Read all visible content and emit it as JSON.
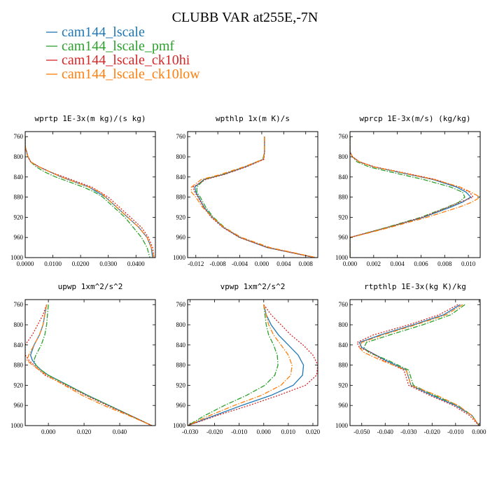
{
  "title": "CLUBB VAR at255E,-7N",
  "legend": [
    {
      "name": "cam144_lscale",
      "color": "#1f77b4",
      "dash": "solid"
    },
    {
      "name": "cam144_lscale_pmf",
      "color": "#2ca02c",
      "dash": "dashdot"
    },
    {
      "name": "cam144_lscale_ck10hi",
      "color": "#d62728",
      "dash": "dotted"
    },
    {
      "name": "cam144_lscale_ck10low",
      "color": "#ff7f0e",
      "dash": "dashdot"
    }
  ],
  "chart_data": [
    {
      "type": "line",
      "title": "wprtp  1E-3x(m kg)/(s kg)",
      "xlim": [
        0.0,
        0.047
      ],
      "ylim": [
        1000,
        750
      ],
      "xticks": [
        0.0,
        0.01,
        0.02,
        0.03,
        0.04
      ],
      "xtick_labels": [
        "0.0000",
        "0.0100",
        "0.0200",
        "0.0300",
        "0.0400"
      ],
      "yticks": [
        760,
        800,
        840,
        880,
        920,
        960,
        1000
      ],
      "y": [
        760,
        780,
        800,
        810,
        820,
        830,
        840,
        850,
        860,
        870,
        880,
        900,
        920,
        940,
        960,
        980,
        1000
      ],
      "series": [
        {
          "x": [
            0.0,
            0.0,
            0.001,
            0.002,
            0.005,
            0.009,
            0.013,
            0.018,
            0.023,
            0.026,
            0.029,
            0.033,
            0.037,
            0.041,
            0.044,
            0.0455,
            0.046
          ]
        },
        {
          "x": [
            0.0,
            0.0,
            0.001,
            0.002,
            0.004,
            0.007,
            0.011,
            0.016,
            0.021,
            0.025,
            0.028,
            0.032,
            0.036,
            0.039,
            0.042,
            0.044,
            0.045
          ]
        },
        {
          "x": [
            0.0,
            0.0,
            0.001,
            0.002,
            0.005,
            0.009,
            0.014,
            0.019,
            0.024,
            0.027,
            0.03,
            0.034,
            0.038,
            0.042,
            0.0445,
            0.046,
            0.0465
          ]
        },
        {
          "x": [
            0.0,
            0.0,
            0.001,
            0.002,
            0.005,
            0.009,
            0.013,
            0.018,
            0.023,
            0.027,
            0.029,
            0.033,
            0.037,
            0.041,
            0.044,
            0.0455,
            0.0465
          ]
        }
      ]
    },
    {
      "type": "line",
      "title": "wpthlp  1x(m K)/s",
      "xlim": [
        -0.0135,
        0.0102
      ],
      "ylim": [
        1000,
        750
      ],
      "xticks": [
        -0.012,
        -0.008,
        -0.004,
        0.0,
        0.004,
        0.008
      ],
      "xtick_labels": [
        "-0.012",
        "-0.008",
        "-0.004",
        "0.000",
        "0.004",
        "0.008"
      ],
      "yticks": [
        760,
        800,
        840,
        880,
        920,
        960,
        1000
      ],
      "y": [
        760,
        790,
        805,
        820,
        835,
        845,
        860,
        870,
        880,
        900,
        920,
        940,
        960,
        980,
        1000
      ],
      "series": [
        {
          "x": [
            0.0005,
            0.0005,
            0.0003,
            -0.003,
            -0.007,
            -0.0105,
            -0.0122,
            -0.012,
            -0.0115,
            -0.0105,
            -0.009,
            -0.007,
            -0.004,
            0.001,
            0.0097
          ]
        },
        {
          "x": [
            0.0005,
            0.0005,
            0.0002,
            -0.0032,
            -0.0072,
            -0.0105,
            -0.0118,
            -0.0118,
            -0.0112,
            -0.0102,
            -0.0088,
            -0.0068,
            -0.0038,
            0.0012,
            0.0098
          ]
        },
        {
          "x": [
            0.0005,
            0.0005,
            0.0004,
            -0.0028,
            -0.0068,
            -0.0102,
            -0.0125,
            -0.0122,
            -0.0116,
            -0.0106,
            -0.0092,
            -0.0071,
            -0.0041,
            0.001,
            0.0097
          ]
        },
        {
          "x": [
            0.0005,
            0.0005,
            0.0003,
            -0.0033,
            -0.0075,
            -0.011,
            -0.0128,
            -0.0128,
            -0.012,
            -0.0108,
            -0.009,
            -0.0069,
            -0.0037,
            0.0015,
            0.0099
          ]
        }
      ]
    },
    {
      "type": "line",
      "title": "wprcp  1E-3x(m/s) (kg/kg)",
      "xlim": [
        0.0,
        0.011
      ],
      "ylim": [
        1000,
        750
      ],
      "xticks": [
        0.0,
        0.002,
        0.004,
        0.006,
        0.008,
        0.01
      ],
      "xtick_labels": [
        "0.000",
        "0.002",
        "0.004",
        "0.006",
        "0.008",
        "0.010"
      ],
      "yticks": [
        760,
        800,
        840,
        880,
        920,
        960,
        1000
      ],
      "y": [
        760,
        790,
        800,
        810,
        820,
        830,
        845,
        860,
        870,
        880,
        890,
        900,
        920,
        940,
        955,
        960,
        1000
      ],
      "series": [
        {
          "x": [
            0.0,
            0.0,
            0.0002,
            0.0008,
            0.002,
            0.004,
            0.007,
            0.009,
            0.0098,
            0.0102,
            0.0095,
            0.0085,
            0.0062,
            0.0032,
            0.0008,
            0.0,
            0.0
          ]
        },
        {
          "x": [
            0.0,
            0.0,
            0.0002,
            0.0006,
            0.0016,
            0.0034,
            0.0062,
            0.0085,
            0.0095,
            0.0097,
            0.0092,
            0.0082,
            0.006,
            0.0031,
            0.0008,
            0.0,
            0.0
          ]
        },
        {
          "x": [
            0.0,
            0.0,
            0.0002,
            0.0008,
            0.0021,
            0.0042,
            0.0072,
            0.0092,
            0.0101,
            0.0104,
            0.0093,
            0.0083,
            0.0061,
            0.0032,
            0.0008,
            0.0,
            0.0
          ]
        },
        {
          "x": [
            0.0,
            0.0,
            0.0002,
            0.0008,
            0.002,
            0.0041,
            0.0071,
            0.0093,
            0.0102,
            0.011,
            0.0103,
            0.0092,
            0.0065,
            0.0034,
            0.0009,
            0.0,
            0.0
          ]
        }
      ]
    },
    {
      "type": "line",
      "title": "upwp  1xm^2/s^2",
      "xlim": [
        -0.013,
        0.06
      ],
      "ylim": [
        1000,
        750
      ],
      "xticks": [
        0.0,
        0.02,
        0.04
      ],
      "xtick_labels": [
        "0.000",
        "0.020",
        "0.040"
      ],
      "yticks": [
        760,
        800,
        840,
        880,
        920,
        960,
        1000
      ],
      "y": [
        760,
        780,
        800,
        820,
        840,
        860,
        870,
        880,
        890,
        900,
        920,
        940,
        960,
        980,
        1000
      ],
      "series": [
        {
          "x": [
            -0.001,
            -0.002,
            -0.003,
            -0.005,
            -0.008,
            -0.01,
            -0.009,
            -0.007,
            -0.004,
            0.0,
            0.011,
            0.022,
            0.034,
            0.046,
            0.058
          ]
        },
        {
          "x": [
            0.0,
            -0.0005,
            -0.001,
            -0.002,
            -0.004,
            -0.007,
            -0.008,
            -0.007,
            -0.004,
            0.0,
            0.011,
            0.022,
            0.034,
            0.046,
            0.058
          ]
        },
        {
          "x": [
            -0.001,
            -0.003,
            -0.006,
            -0.009,
            -0.013,
            -0.013,
            -0.011,
            -0.008,
            -0.005,
            -0.002,
            0.01,
            0.021,
            0.033,
            0.046,
            0.058
          ]
        },
        {
          "x": [
            -0.001,
            -0.002,
            -0.003,
            -0.005,
            -0.008,
            -0.011,
            -0.012,
            -0.009,
            -0.005,
            -0.001,
            0.009,
            0.019,
            0.031,
            0.045,
            0.058
          ]
        }
      ]
    },
    {
      "type": "line",
      "title": "vpwp  1xm^2/s^2",
      "xlim": [
        -0.031,
        0.022
      ],
      "ylim": [
        1000,
        750
      ],
      "xticks": [
        -0.03,
        -0.02,
        -0.01,
        0.0,
        0.01,
        0.02
      ],
      "xtick_labels": [
        "-0.030",
        "-0.020",
        "-0.010",
        "0.000",
        "0.010",
        "0.020"
      ],
      "yticks": [
        760,
        800,
        840,
        880,
        920,
        960,
        1000
      ],
      "y": [
        760,
        780,
        800,
        820,
        840,
        860,
        880,
        900,
        920,
        940,
        960,
        980,
        1000
      ],
      "series": [
        {
          "x": [
            0.0,
            0.001,
            0.003,
            0.006,
            0.01,
            0.014,
            0.0162,
            0.0158,
            0.012,
            0.003,
            -0.009,
            -0.02,
            -0.031
          ]
        },
        {
          "x": [
            0.0,
            0.0005,
            0.001,
            0.002,
            0.004,
            0.0055,
            0.0058,
            0.0045,
            0.0005,
            -0.007,
            -0.016,
            -0.024,
            -0.031
          ]
        },
        {
          "x": [
            0.0,
            0.003,
            0.007,
            0.011,
            0.016,
            0.02,
            0.022,
            0.0215,
            0.017,
            0.006,
            -0.006,
            -0.019,
            -0.031
          ]
        },
        {
          "x": [
            0.0,
            0.001,
            0.002,
            0.004,
            0.007,
            0.01,
            0.0115,
            0.011,
            0.007,
            -0.001,
            -0.012,
            -0.022,
            -0.031
          ]
        }
      ]
    },
    {
      "type": "line",
      "title": "rtpthlp  1E-3x(kg K)/kg",
      "xlim": [
        -0.055,
        0.0005
      ],
      "ylim": [
        1000,
        750
      ],
      "xticks": [
        -0.05,
        -0.04,
        -0.03,
        -0.02,
        -0.01,
        0.0
      ],
      "xtick_labels": [
        "-0.050",
        "-0.040",
        "-0.030",
        "-0.020",
        "-0.010",
        "0.000"
      ],
      "yticks": [
        760,
        800,
        840,
        880,
        920,
        960,
        1000
      ],
      "y": [
        760,
        780,
        800,
        820,
        835,
        845,
        855,
        870,
        890,
        905,
        920,
        940,
        960,
        980,
        1000
      ],
      "series": [
        {
          "x": [
            -0.008,
            -0.015,
            -0.028,
            -0.042,
            -0.051,
            -0.05,
            -0.046,
            -0.04,
            -0.031,
            -0.03,
            -0.029,
            -0.02,
            -0.01,
            -0.003,
            0.0
          ]
        },
        {
          "x": [
            -0.006,
            -0.012,
            -0.024,
            -0.038,
            -0.048,
            -0.049,
            -0.047,
            -0.039,
            -0.03,
            -0.029,
            -0.028,
            -0.019,
            -0.009,
            -0.003,
            0.0
          ]
        },
        {
          "x": [
            -0.009,
            -0.017,
            -0.03,
            -0.045,
            -0.052,
            -0.051,
            -0.046,
            -0.041,
            -0.032,
            -0.031,
            -0.03,
            -0.021,
            -0.011,
            -0.004,
            0.0
          ]
        },
        {
          "x": [
            -0.007,
            -0.014,
            -0.027,
            -0.041,
            -0.05,
            -0.051,
            -0.049,
            -0.042,
            -0.031,
            -0.03,
            -0.029,
            -0.018,
            -0.009,
            -0.003,
            0.0
          ]
        }
      ]
    }
  ]
}
